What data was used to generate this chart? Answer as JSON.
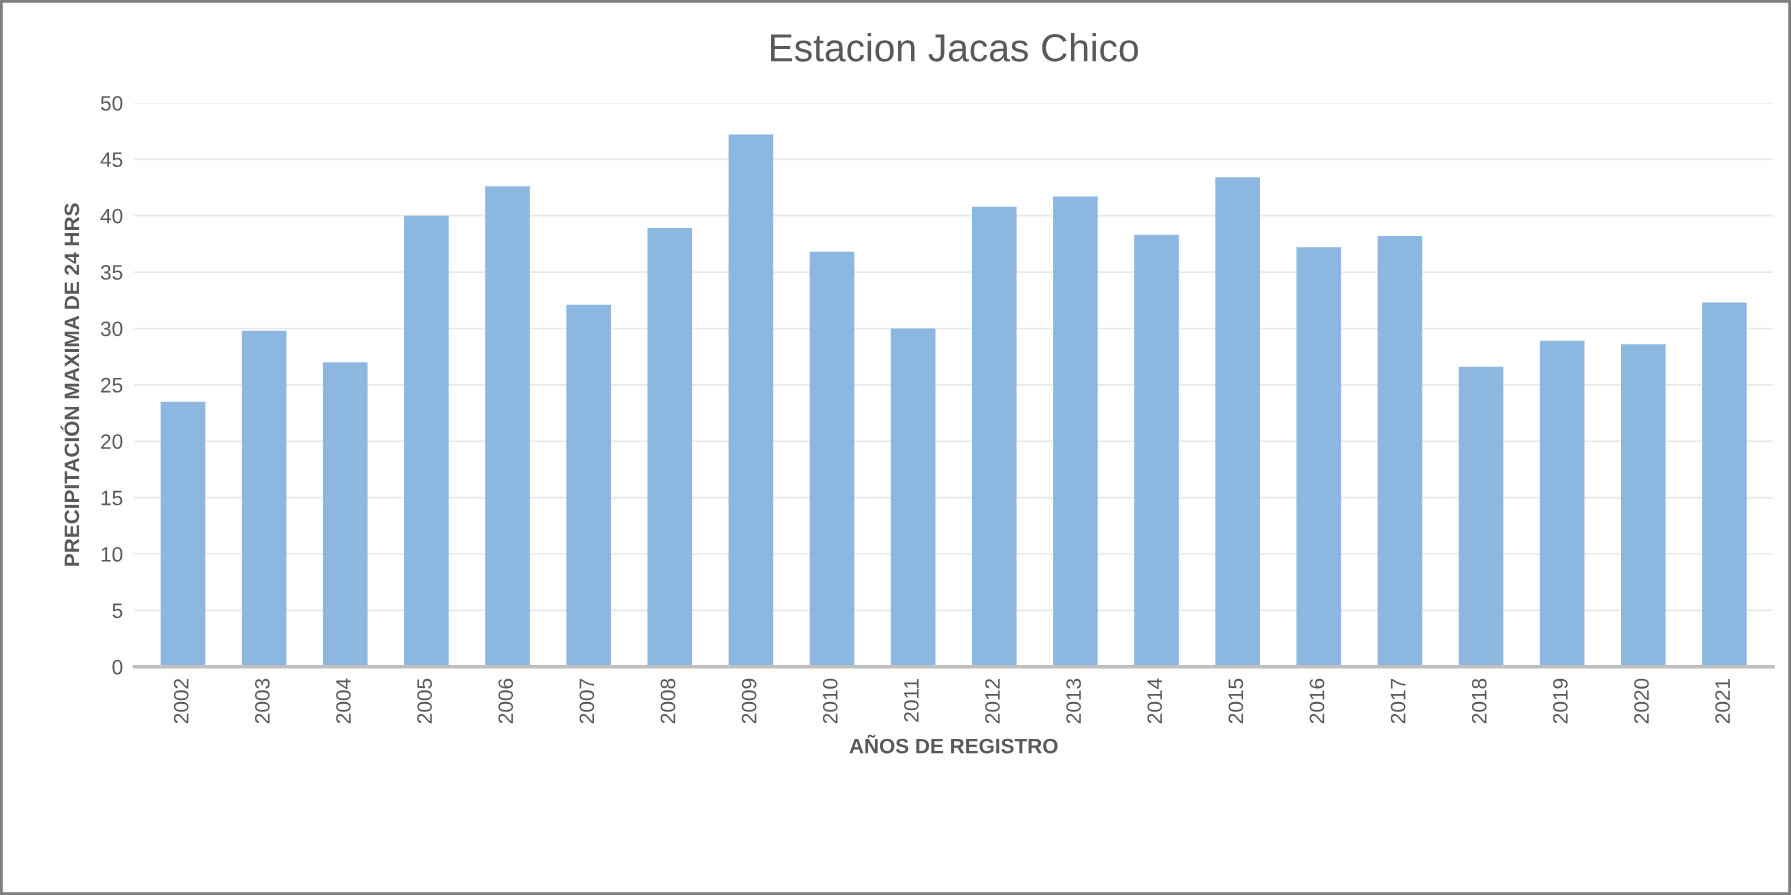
{
  "chart_data": {
    "type": "bar",
    "title": "Estacion Jacas Chico",
    "xlabel": "AÑOS DE REGISTRO",
    "ylabel": "PRECIPITACIÓN MAXIMA DE 24 HRS",
    "categories": [
      "2002",
      "2003",
      "2004",
      "2005",
      "2006",
      "2007",
      "2008",
      "2009",
      "2010",
      "2011",
      "2012",
      "2013",
      "2014",
      "2015",
      "2016",
      "2017",
      "2018",
      "2019",
      "2020",
      "2021"
    ],
    "values": [
      23.5,
      29.8,
      27.0,
      40.0,
      42.6,
      32.1,
      38.9,
      47.2,
      36.8,
      30.0,
      40.8,
      41.7,
      38.3,
      43.4,
      37.2,
      38.2,
      26.6,
      28.9,
      28.6,
      32.3
    ],
    "color": "#8cb7e0",
    "ylim": [
      0,
      50
    ],
    "yticks": [
      0,
      5,
      10,
      15,
      20,
      25,
      30,
      35,
      40,
      45,
      50
    ],
    "grid": "y"
  }
}
